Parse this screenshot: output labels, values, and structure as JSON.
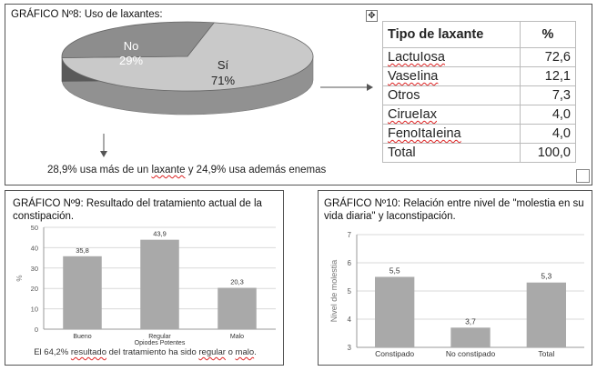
{
  "panel8": {
    "title": "GRÁFICO Nº8: Uso de laxantes:",
    "handle_icon": "move-icon",
    "caption_parts": [
      "28,9% usa más de un ",
      "laxante",
      " y 24,9% usa además enemas"
    ]
  },
  "panel9": {
    "title": "GRÁFICO Nº9: Resultado del tratamiento actual de la constipación.",
    "caption_parts": [
      "El 64,2% ",
      "resultado",
      " del tratamiento ha sido ",
      "regular",
      " o ",
      "malo",
      "."
    ]
  },
  "panel10": {
    "title": "GRÁFICO Nº10: Relación entre nivel de \"molestia en su vida diaria\" y laconstipación."
  },
  "colors": {
    "pie_no": "#8d8d8d",
    "pie_si": "#c9c9c9",
    "bar": "#a9a9a9",
    "grid": "#d9d9d9",
    "axis_text": "#555555"
  },
  "chart_data": [
    {
      "type": "pie",
      "slices": [
        {
          "label": "Sí",
          "value": 71,
          "display": "71%"
        },
        {
          "label": "No",
          "value": 29,
          "display": "29%"
        }
      ]
    },
    {
      "type": "table",
      "columns": [
        "Tipo de laxante",
        "%"
      ],
      "rows": [
        [
          "LactuIosa",
          "72,6"
        ],
        [
          "VaseIina",
          "12,1"
        ],
        [
          "Otros",
          "7,3"
        ],
        [
          "CirueIax",
          "4,0"
        ],
        [
          "FenoItaIeina",
          "4,0"
        ],
        [
          "Total",
          "100,0"
        ]
      ]
    },
    {
      "type": "bar",
      "categories": [
        "Bueno",
        "Regular",
        "Malo"
      ],
      "values": [
        35.8,
        43.9,
        20.3
      ],
      "labels": [
        "35,8",
        "43,9",
        "20,3"
      ],
      "ylabel": "%",
      "xlabel": "Opiodes  Potentes",
      "ylim": [
        0,
        50
      ],
      "yticks": [
        0,
        10,
        20,
        30,
        40,
        50
      ],
      "grid": true
    },
    {
      "type": "bar",
      "categories": [
        "Constipado",
        "No constipado",
        "Total"
      ],
      "values": [
        5.5,
        3.7,
        5.3
      ],
      "labels": [
        "5,5",
        "3,7",
        "5,3"
      ],
      "ylabel": "Nivel de molestia",
      "ylim": [
        3,
        7
      ],
      "yticks": [
        3,
        4,
        5,
        6,
        7
      ],
      "grid": true
    }
  ]
}
